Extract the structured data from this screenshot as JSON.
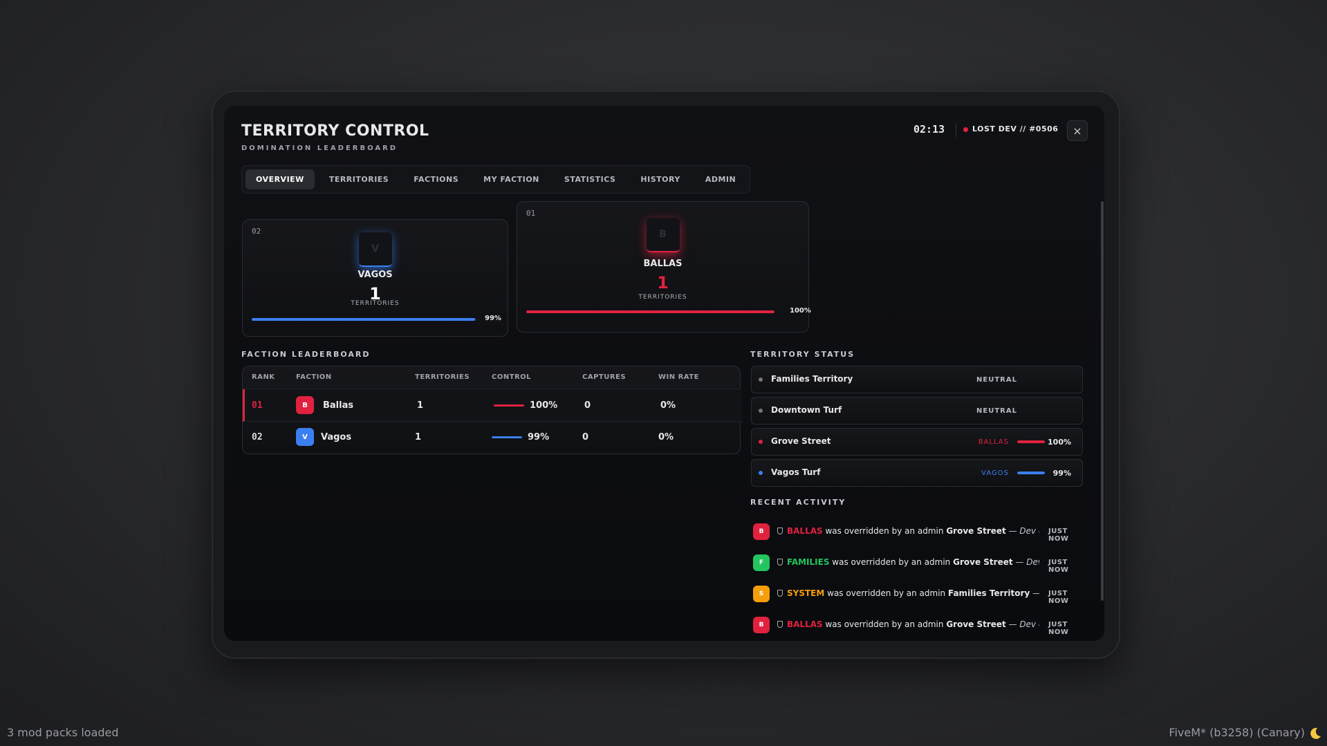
{
  "header": {
    "title": "TERRITORY CONTROL",
    "subtitle": "DOMINATION LEADERBOARD",
    "time": "02:13",
    "server": "LOST DEV // #0506",
    "close": "×"
  },
  "tabs": [
    "OVERVIEW",
    "TERRITORIES",
    "FACTIONS",
    "MY FACTION",
    "STATISTICS",
    "HISTORY",
    "ADMIN"
  ],
  "podium": [
    {
      "rank": "02",
      "icon": "V",
      "name": "VAGOS",
      "territories": 1,
      "territories_label": "TERRITORIES",
      "control": 99,
      "control_label": "99%",
      "color": "#3b7ff0"
    },
    {
      "rank": "01",
      "icon": "B",
      "name": "BALLAS",
      "territories": 1,
      "territories_label": "TERRITORIES",
      "control": 100,
      "control_label": "100%",
      "color": "#e0223f"
    }
  ],
  "leaderboard": {
    "title": "FACTION LEADERBOARD",
    "columns": [
      "RANK",
      "FACTION",
      "TERRITORIES",
      "CONTROL",
      "CAPTURES",
      "WIN RATE"
    ],
    "rows": [
      {
        "rank": "01",
        "icon": "B",
        "faction": "Ballas",
        "territories": 1,
        "control": 100,
        "control_label": "100%",
        "captures": 0,
        "win_rate": "0%",
        "color": "#e0223f"
      },
      {
        "rank": "02",
        "icon": "V",
        "faction": "Vagos",
        "territories": 1,
        "control": 99,
        "control_label": "99%",
        "captures": 0,
        "win_rate": "0%",
        "color": "#3b7ff0"
      }
    ]
  },
  "territory_status": {
    "title": "TERRITORY STATUS",
    "rows": [
      {
        "name": "Families Territory",
        "status": "NEUTRAL"
      },
      {
        "name": "Downtown Turf",
        "status": "NEUTRAL"
      },
      {
        "name": "Grove Street",
        "owner": "BALLAS",
        "control": 100,
        "control_label": "100%",
        "color": "#e0223f"
      },
      {
        "name": "Vagos Turf",
        "owner": "VAGOS",
        "control": 99,
        "control_label": "99%",
        "color": "#3b7ff0"
      }
    ]
  },
  "activity": {
    "title": "RECENT ACTIVITY",
    "items": [
      {
        "icon": "B",
        "actor": "BALLAS",
        "action": "was overridden by an admin",
        "territory": "Grove Street",
        "note": "— Dev comm...",
        "time": "JUST NOW",
        "color": "#e0223f"
      },
      {
        "icon": "F",
        "actor": "FAMILIES",
        "action": "was overridden by an admin",
        "territory": "Grove Street",
        "note": "— Dev com...",
        "time": "JUST NOW",
        "color": "#22c55e"
      },
      {
        "icon": "S",
        "actor": "SYSTEM",
        "action": "was overridden by an admin",
        "territory": "Families Territory",
        "note": "— Dev c...",
        "time": "JUST NOW",
        "color": "#f59e0b"
      },
      {
        "icon": "B",
        "actor": "BALLAS",
        "action": "was overridden by an admin",
        "territory": "Grove Street",
        "note": "— Dev comm...",
        "time": "JUST NOW",
        "color": "#e0223f"
      }
    ]
  },
  "footer": {
    "left": "3 mod packs loaded",
    "right": "FiveM* (b3258) (Canary)"
  }
}
